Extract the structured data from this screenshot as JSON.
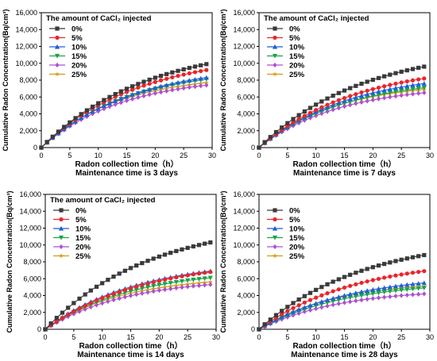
{
  "figure": {
    "ylabel": "Cumulative Radon Concentration(Bq/cm³)",
    "xlabel": "Radon collection time（h）",
    "legend_title": "The amount of CaCl₂ injected"
  },
  "colors": {
    "0%": "#3a3a3a",
    "5%": "#e8262c",
    "10%": "#1f5fd6",
    "15%": "#1aa34a",
    "20%": "#b04fd0",
    "25%": "#d49a17"
  },
  "chart_data": [
    {
      "type": "line",
      "subtitle": "Maintenance time is 3 days",
      "xlabel": "Radon collection time（h）",
      "ylabel": "Cumulative Radon Concentration(Bq/cm³)",
      "xlim": [
        0,
        30
      ],
      "ylim": [
        0,
        16000
      ],
      "xticks": [
        0,
        5,
        10,
        15,
        20,
        25,
        30
      ],
      "yticks": [
        0,
        2000,
        4000,
        6000,
        8000,
        10000,
        12000,
        14000,
        16000
      ],
      "ytick_labels": [
        "0",
        "2,000",
        "4,000",
        "6,000",
        "8,000",
        "10,000",
        "12,000",
        "14,000",
        "16,000"
      ],
      "legend_title": "The amount of CaCl₂ injected",
      "legend_position": "top-left",
      "x": [
        0,
        1,
        2,
        3,
        4,
        5,
        6,
        7,
        8,
        9,
        10,
        11,
        12,
        13,
        14,
        15,
        16,
        17,
        18,
        19,
        20,
        21,
        22,
        23,
        24,
        25,
        26,
        27,
        28,
        29
      ],
      "series": [
        {
          "name": "0%",
          "final": 9900
        },
        {
          "name": "5%",
          "final": 9200
        },
        {
          "name": "10%",
          "final": 8300
        },
        {
          "name": "15%",
          "final": 8100
        },
        {
          "name": "20%",
          "final": 7400
        },
        {
          "name": "25%",
          "final": 7700
        }
      ]
    },
    {
      "type": "line",
      "subtitle": "Maintenance time is 7 days",
      "xlabel": "Radon collection time（h）",
      "ylabel": "Cumulative Radon Concentration(Bq/cm³)",
      "xlim": [
        0,
        30
      ],
      "ylim": [
        0,
        16000
      ],
      "xticks": [
        0,
        5,
        10,
        15,
        20,
        25,
        30
      ],
      "yticks": [
        0,
        2000,
        4000,
        6000,
        8000,
        10000,
        12000,
        14000,
        16000
      ],
      "ytick_labels": [
        "0",
        "2,000",
        "4,000",
        "6,000",
        "8,000",
        "10,000",
        "12,000",
        "14,000",
        "16,000"
      ],
      "legend_title": "The amount of CaCl₂ injected",
      "legend_position": "top-left",
      "x": [
        0,
        1,
        2,
        3,
        4,
        5,
        6,
        7,
        8,
        9,
        10,
        11,
        12,
        13,
        14,
        15,
        16,
        17,
        18,
        19,
        20,
        21,
        22,
        23,
        24,
        25,
        26,
        27,
        28,
        29
      ],
      "series": [
        {
          "name": "0%",
          "final": 9600
        },
        {
          "name": "5%",
          "final": 8200
        },
        {
          "name": "10%",
          "final": 7600
        },
        {
          "name": "15%",
          "final": 7100
        },
        {
          "name": "20%",
          "final": 6500
        },
        {
          "name": "25%",
          "final": 6900
        }
      ]
    },
    {
      "type": "line",
      "subtitle": "Maintenance time is 14 days",
      "xlabel": "Radon collection time（h）",
      "ylabel": "Cumulative Radon Concentration(Bq/cm³)",
      "xlim": [
        0,
        30
      ],
      "ylim": [
        0,
        16000
      ],
      "xticks": [
        0,
        5,
        10,
        15,
        20,
        25,
        30
      ],
      "yticks": [
        0,
        2000,
        4000,
        6000,
        8000,
        10000,
        12000,
        14000,
        16000
      ],
      "ytick_labels": [
        "0",
        "2,000",
        "4,000",
        "6,000",
        "8,000",
        "10,000",
        "12,000",
        "14,000",
        "16,000"
      ],
      "legend_title": "The amount of CaCl₂ injected",
      "legend_position": "top-left",
      "x": [
        0,
        1,
        2,
        3,
        4,
        5,
        6,
        7,
        8,
        9,
        10,
        11,
        12,
        13,
        14,
        15,
        16,
        17,
        18,
        19,
        20,
        21,
        22,
        23,
        24,
        25,
        26,
        27,
        28,
        29
      ],
      "series": [
        {
          "name": "0%",
          "final": 10300
        },
        {
          "name": "5%",
          "final": 6800
        },
        {
          "name": "10%",
          "final": 6900
        },
        {
          "name": "15%",
          "final": 6100
        },
        {
          "name": "20%",
          "final": 5300
        },
        {
          "name": "25%",
          "final": 5600
        }
      ]
    },
    {
      "type": "line",
      "subtitle": "Maintenance time is 28 days",
      "xlabel": "Radon collection time（h）",
      "ylabel": "Cumulative Radon Concentration(Bq/cm³)",
      "xlim": [
        0,
        30
      ],
      "ylim": [
        0,
        16000
      ],
      "xticks": [
        0,
        5,
        10,
        15,
        20,
        25,
        30
      ],
      "yticks": [
        0,
        2000,
        4000,
        6000,
        8000,
        10000,
        12000,
        14000,
        16000
      ],
      "ytick_labels": [
        "0",
        "2,000",
        "4,000",
        "6,000",
        "8,000",
        "10,000",
        "12,000",
        "14,000",
        "16,000"
      ],
      "legend_title": "",
      "legend_position": "top-left",
      "x": [
        0,
        1,
        2,
        3,
        4,
        5,
        6,
        7,
        8,
        9,
        10,
        11,
        12,
        13,
        14,
        15,
        16,
        17,
        18,
        19,
        20,
        21,
        22,
        23,
        24,
        25,
        26,
        27,
        28,
        29
      ],
      "series": [
        {
          "name": "0%",
          "final": 8800
        },
        {
          "name": "5%",
          "final": 6900
        },
        {
          "name": "10%",
          "final": 5500
        },
        {
          "name": "15%",
          "final": 4900
        },
        {
          "name": "20%",
          "final": 4200
        },
        {
          "name": "25%",
          "final": 5100
        }
      ]
    }
  ]
}
